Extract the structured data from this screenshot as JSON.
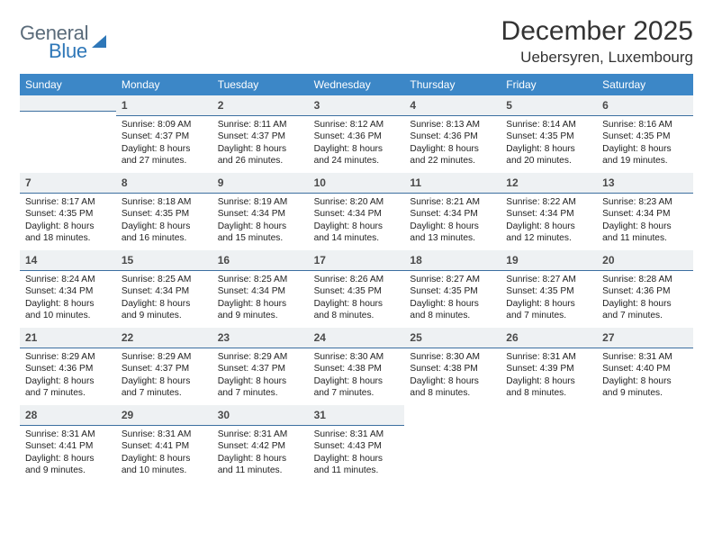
{
  "brand": {
    "word1": "General",
    "word2": "Blue"
  },
  "title": "December 2025",
  "location": "Uebersyren, Luxembourg",
  "colors": {
    "header_bg": "#3c87c7",
    "header_text": "#ffffff",
    "daynum_bg": "#eef1f3",
    "daynum_border": "#3c6fa0",
    "body_text": "#222222",
    "logo_gray": "#5a6b7a",
    "logo_blue": "#2e77b8"
  },
  "weekdays": [
    "Sunday",
    "Monday",
    "Tuesday",
    "Wednesday",
    "Thursday",
    "Friday",
    "Saturday"
  ],
  "weeks": [
    [
      {
        "n": "",
        "sunrise": "",
        "sunset": "",
        "daylight": ""
      },
      {
        "n": "1",
        "sunrise": "Sunrise: 8:09 AM",
        "sunset": "Sunset: 4:37 PM",
        "daylight": "Daylight: 8 hours and 27 minutes."
      },
      {
        "n": "2",
        "sunrise": "Sunrise: 8:11 AM",
        "sunset": "Sunset: 4:37 PM",
        "daylight": "Daylight: 8 hours and 26 minutes."
      },
      {
        "n": "3",
        "sunrise": "Sunrise: 8:12 AM",
        "sunset": "Sunset: 4:36 PM",
        "daylight": "Daylight: 8 hours and 24 minutes."
      },
      {
        "n": "4",
        "sunrise": "Sunrise: 8:13 AM",
        "sunset": "Sunset: 4:36 PM",
        "daylight": "Daylight: 8 hours and 22 minutes."
      },
      {
        "n": "5",
        "sunrise": "Sunrise: 8:14 AM",
        "sunset": "Sunset: 4:35 PM",
        "daylight": "Daylight: 8 hours and 20 minutes."
      },
      {
        "n": "6",
        "sunrise": "Sunrise: 8:16 AM",
        "sunset": "Sunset: 4:35 PM",
        "daylight": "Daylight: 8 hours and 19 minutes."
      }
    ],
    [
      {
        "n": "7",
        "sunrise": "Sunrise: 8:17 AM",
        "sunset": "Sunset: 4:35 PM",
        "daylight": "Daylight: 8 hours and 18 minutes."
      },
      {
        "n": "8",
        "sunrise": "Sunrise: 8:18 AM",
        "sunset": "Sunset: 4:35 PM",
        "daylight": "Daylight: 8 hours and 16 minutes."
      },
      {
        "n": "9",
        "sunrise": "Sunrise: 8:19 AM",
        "sunset": "Sunset: 4:34 PM",
        "daylight": "Daylight: 8 hours and 15 minutes."
      },
      {
        "n": "10",
        "sunrise": "Sunrise: 8:20 AM",
        "sunset": "Sunset: 4:34 PM",
        "daylight": "Daylight: 8 hours and 14 minutes."
      },
      {
        "n": "11",
        "sunrise": "Sunrise: 8:21 AM",
        "sunset": "Sunset: 4:34 PM",
        "daylight": "Daylight: 8 hours and 13 minutes."
      },
      {
        "n": "12",
        "sunrise": "Sunrise: 8:22 AM",
        "sunset": "Sunset: 4:34 PM",
        "daylight": "Daylight: 8 hours and 12 minutes."
      },
      {
        "n": "13",
        "sunrise": "Sunrise: 8:23 AM",
        "sunset": "Sunset: 4:34 PM",
        "daylight": "Daylight: 8 hours and 11 minutes."
      }
    ],
    [
      {
        "n": "14",
        "sunrise": "Sunrise: 8:24 AM",
        "sunset": "Sunset: 4:34 PM",
        "daylight": "Daylight: 8 hours and 10 minutes."
      },
      {
        "n": "15",
        "sunrise": "Sunrise: 8:25 AM",
        "sunset": "Sunset: 4:34 PM",
        "daylight": "Daylight: 8 hours and 9 minutes."
      },
      {
        "n": "16",
        "sunrise": "Sunrise: 8:25 AM",
        "sunset": "Sunset: 4:34 PM",
        "daylight": "Daylight: 8 hours and 9 minutes."
      },
      {
        "n": "17",
        "sunrise": "Sunrise: 8:26 AM",
        "sunset": "Sunset: 4:35 PM",
        "daylight": "Daylight: 8 hours and 8 minutes."
      },
      {
        "n": "18",
        "sunrise": "Sunrise: 8:27 AM",
        "sunset": "Sunset: 4:35 PM",
        "daylight": "Daylight: 8 hours and 8 minutes."
      },
      {
        "n": "19",
        "sunrise": "Sunrise: 8:27 AM",
        "sunset": "Sunset: 4:35 PM",
        "daylight": "Daylight: 8 hours and 7 minutes."
      },
      {
        "n": "20",
        "sunrise": "Sunrise: 8:28 AM",
        "sunset": "Sunset: 4:36 PM",
        "daylight": "Daylight: 8 hours and 7 minutes."
      }
    ],
    [
      {
        "n": "21",
        "sunrise": "Sunrise: 8:29 AM",
        "sunset": "Sunset: 4:36 PM",
        "daylight": "Daylight: 8 hours and 7 minutes."
      },
      {
        "n": "22",
        "sunrise": "Sunrise: 8:29 AM",
        "sunset": "Sunset: 4:37 PM",
        "daylight": "Daylight: 8 hours and 7 minutes."
      },
      {
        "n": "23",
        "sunrise": "Sunrise: 8:29 AM",
        "sunset": "Sunset: 4:37 PM",
        "daylight": "Daylight: 8 hours and 7 minutes."
      },
      {
        "n": "24",
        "sunrise": "Sunrise: 8:30 AM",
        "sunset": "Sunset: 4:38 PM",
        "daylight": "Daylight: 8 hours and 7 minutes."
      },
      {
        "n": "25",
        "sunrise": "Sunrise: 8:30 AM",
        "sunset": "Sunset: 4:38 PM",
        "daylight": "Daylight: 8 hours and 8 minutes."
      },
      {
        "n": "26",
        "sunrise": "Sunrise: 8:31 AM",
        "sunset": "Sunset: 4:39 PM",
        "daylight": "Daylight: 8 hours and 8 minutes."
      },
      {
        "n": "27",
        "sunrise": "Sunrise: 8:31 AM",
        "sunset": "Sunset: 4:40 PM",
        "daylight": "Daylight: 8 hours and 9 minutes."
      }
    ],
    [
      {
        "n": "28",
        "sunrise": "Sunrise: 8:31 AM",
        "sunset": "Sunset: 4:41 PM",
        "daylight": "Daylight: 8 hours and 9 minutes."
      },
      {
        "n": "29",
        "sunrise": "Sunrise: 8:31 AM",
        "sunset": "Sunset: 4:41 PM",
        "daylight": "Daylight: 8 hours and 10 minutes."
      },
      {
        "n": "30",
        "sunrise": "Sunrise: 8:31 AM",
        "sunset": "Sunset: 4:42 PM",
        "daylight": "Daylight: 8 hours and 11 minutes."
      },
      {
        "n": "31",
        "sunrise": "Sunrise: 8:31 AM",
        "sunset": "Sunset: 4:43 PM",
        "daylight": "Daylight: 8 hours and 11 minutes."
      },
      {
        "n": "",
        "sunrise": "",
        "sunset": "",
        "daylight": ""
      },
      {
        "n": "",
        "sunrise": "",
        "sunset": "",
        "daylight": ""
      },
      {
        "n": "",
        "sunrise": "",
        "sunset": "",
        "daylight": ""
      }
    ]
  ]
}
